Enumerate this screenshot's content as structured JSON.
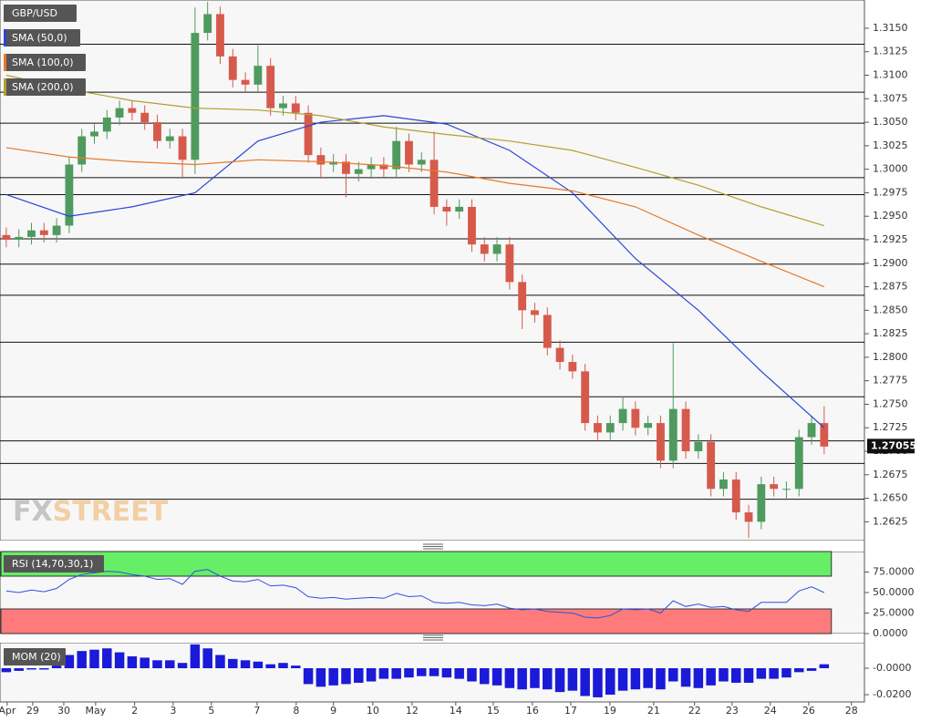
{
  "watermark": [
    "FX",
    "STREET"
  ],
  "chart_data": [
    {
      "type": "candlestick",
      "symbol": "GBP/USD",
      "last_price": 1.27055,
      "last_price_label": "1.27055",
      "up_color": "#4f9a5e",
      "down_color": "#d65a4c",
      "ylim": [
        1.2605,
        1.318
      ],
      "yticks": [
        {
          "value": 1.2625,
          "label": "1.2625"
        },
        {
          "value": 1.265,
          "label": "1.2650"
        },
        {
          "value": 1.2675,
          "label": "1.2675"
        },
        {
          "value": 1.27,
          "label": "1.2700"
        },
        {
          "value": 1.2725,
          "label": "1.2725"
        },
        {
          "value": 1.275,
          "label": "1.2750"
        },
        {
          "value": 1.2775,
          "label": "1.2775"
        },
        {
          "value": 1.28,
          "label": "1.2800"
        },
        {
          "value": 1.2825,
          "label": "1.2825"
        },
        {
          "value": 1.285,
          "label": "1.2850"
        },
        {
          "value": 1.2875,
          "label": "1.2875"
        },
        {
          "value": 1.29,
          "label": "1.2900"
        },
        {
          "value": 1.2925,
          "label": "1.2925"
        },
        {
          "value": 1.295,
          "label": "1.2950"
        },
        {
          "value": 1.2975,
          "label": "1.2975"
        },
        {
          "value": 1.3,
          "label": "1.3000"
        },
        {
          "value": 1.3025,
          "label": "1.3025"
        },
        {
          "value": 1.305,
          "label": "1.3050"
        },
        {
          "value": 1.3075,
          "label": "1.3075"
        },
        {
          "value": 1.31,
          "label": "1.3100"
        },
        {
          "value": 1.3125,
          "label": "1.3125"
        },
        {
          "value": 1.315,
          "label": "1.3150"
        }
      ],
      "levels": [
        1.3133,
        1.3082,
        1.3049,
        1.2991,
        1.2973,
        1.2926,
        1.2899,
        1.2866,
        1.2816,
        1.2758,
        1.2711,
        1.2687,
        1.2649
      ],
      "open": [
        1.293,
        1.2925,
        1.2928,
        1.2935,
        1.293,
        1.294,
        1.3005,
        1.3035,
        1.304,
        1.3055,
        1.3065,
        1.306,
        1.305,
        1.303,
        1.3035,
        1.301,
        1.3145,
        1.3165,
        1.312,
        1.3095,
        1.309,
        1.311,
        1.3065,
        1.307,
        1.306,
        1.3015,
        1.3005,
        1.3008,
        1.2995,
        1.3,
        1.3005,
        1.3,
        1.303,
        1.3005,
        1.301,
        1.296,
        1.2955,
        1.296,
        1.292,
        1.291,
        1.292,
        1.288,
        1.285,
        1.2845,
        1.281,
        1.2795,
        1.2785,
        1.273,
        1.272,
        1.273,
        1.2745,
        1.2725,
        1.273,
        1.269,
        1.2745,
        1.27,
        1.271,
        1.266,
        1.267,
        1.2635,
        1.2625,
        1.2665,
        1.266,
        1.266,
        1.2715,
        1.273
      ],
      "high": [
        1.2938,
        1.2936,
        1.2943,
        1.2943,
        1.2948,
        1.3013,
        1.3043,
        1.3048,
        1.3063,
        1.3073,
        1.3073,
        1.3068,
        1.3058,
        1.3043,
        1.3043,
        1.3172,
        1.3178,
        1.3173,
        1.3128,
        1.3103,
        1.3132,
        1.3118,
        1.3078,
        1.3078,
        1.3068,
        1.3023,
        1.3016,
        1.3016,
        1.3008,
        1.3013,
        1.3013,
        1.3045,
        1.3038,
        1.3018,
        1.304,
        1.2968,
        1.2968,
        1.2968,
        1.2928,
        1.2928,
        1.2928,
        1.2888,
        1.2858,
        1.2853,
        1.2818,
        1.2803,
        1.2793,
        1.2738,
        1.2738,
        1.2758,
        1.2753,
        1.2738,
        1.2738,
        1.2815,
        1.2753,
        1.2718,
        1.2718,
        1.2678,
        1.2678,
        1.2643,
        1.2673,
        1.2673,
        1.2668,
        1.2723,
        1.2738,
        1.2748
      ],
      "low": [
        1.2917,
        1.2917,
        1.292,
        1.2922,
        1.2922,
        1.2932,
        1.2997,
        1.3027,
        1.3032,
        1.3047,
        1.3052,
        1.3042,
        1.3022,
        1.3022,
        1.299,
        1.2995,
        1.3137,
        1.3112,
        1.3087,
        1.3082,
        1.3082,
        1.3057,
        1.3057,
        1.3052,
        1.3007,
        1.299,
        1.2997,
        1.297,
        1.2987,
        1.2992,
        1.2992,
        1.2992,
        1.2997,
        1.2997,
        1.2952,
        1.294,
        1.2947,
        1.2912,
        1.2902,
        1.2902,
        1.2872,
        1.283,
        1.2837,
        1.2802,
        1.2787,
        1.2777,
        1.2722,
        1.2712,
        1.2712,
        1.2722,
        1.2717,
        1.2717,
        1.2682,
        1.2682,
        1.2692,
        1.2692,
        1.2652,
        1.2652,
        1.2627,
        1.2608,
        1.2617,
        1.2652,
        1.2648,
        1.2652,
        1.2707,
        1.2697
      ],
      "close": [
        1.2925,
        1.2928,
        1.2935,
        1.293,
        1.294,
        1.3005,
        1.3035,
        1.304,
        1.3055,
        1.3065,
        1.306,
        1.305,
        1.303,
        1.3035,
        1.301,
        1.3145,
        1.3165,
        1.312,
        1.3095,
        1.309,
        1.311,
        1.3065,
        1.307,
        1.306,
        1.3015,
        1.3005,
        1.3008,
        1.2995,
        1.3,
        1.3005,
        1.3,
        1.303,
        1.3005,
        1.301,
        1.296,
        1.2955,
        1.296,
        1.292,
        1.291,
        1.292,
        1.288,
        1.285,
        1.2845,
        1.281,
        1.2795,
        1.2785,
        1.273,
        1.272,
        1.273,
        1.2745,
        1.2725,
        1.273,
        1.269,
        1.2745,
        1.27,
        1.271,
        1.266,
        1.267,
        1.2635,
        1.2625,
        1.2665,
        1.266,
        1.266,
        1.2715,
        1.273,
        1.2705
      ],
      "series": [
        {
          "name": "SMA (50,0)",
          "color": "#2a45d8",
          "x": [
            0,
            5,
            10,
            15,
            20,
            25,
            30,
            35,
            40,
            45,
            50,
            55,
            60,
            65
          ],
          "values": [
            1.2973,
            1.295,
            1.296,
            1.2975,
            1.303,
            1.305,
            1.3057,
            1.3048,
            1.302,
            1.2975,
            1.2905,
            1.285,
            1.2785,
            1.2725
          ]
        },
        {
          "name": "SMA (100,0)",
          "color": "#e8782a",
          "x": [
            0,
            5,
            10,
            15,
            20,
            25,
            30,
            35,
            40,
            45,
            50,
            55,
            60,
            65
          ],
          "values": [
            1.3023,
            1.3013,
            1.3008,
            1.3005,
            1.301,
            1.3008,
            1.3004,
            1.2997,
            1.2985,
            1.2977,
            1.296,
            1.293,
            1.2902,
            1.2875
          ]
        },
        {
          "name": "SMA (200,0)",
          "color": "#b0a030",
          "x": [
            0,
            5,
            10,
            15,
            20,
            25,
            30,
            35,
            40,
            45,
            50,
            55,
            60,
            65
          ],
          "values": [
            1.31,
            1.3085,
            1.3073,
            1.3065,
            1.3063,
            1.3057,
            1.3045,
            1.3037,
            1.303,
            1.302,
            1.3002,
            1.2983,
            1.296,
            1.294
          ]
        }
      ]
    },
    {
      "type": "line",
      "title": "RSI (14,70,30,1)",
      "color": "#3050e0",
      "overbought": 70,
      "oversold": 30,
      "ylim": [
        0,
        100
      ],
      "yticks": [
        {
          "value": 0,
          "label": "0.0000"
        },
        {
          "value": 25,
          "label": "25.0000"
        },
        {
          "value": 50,
          "label": "50.0000"
        },
        {
          "value": 75,
          "label": "75.0000"
        }
      ],
      "values": [
        52,
        50,
        53,
        51,
        55,
        66,
        72,
        74,
        76,
        75,
        72,
        70,
        66,
        67,
        60,
        76,
        78,
        70,
        64,
        63,
        66,
        58,
        59,
        56,
        45,
        43,
        44,
        42,
        43,
        44,
        43,
        49,
        45,
        46,
        38,
        37,
        38,
        35,
        34,
        36,
        31,
        29,
        30,
        27,
        26,
        25,
        20,
        19,
        22,
        30,
        29,
        30,
        25,
        40,
        33,
        36,
        32,
        33,
        29,
        27,
        38,
        38,
        38,
        52,
        57,
        50
      ]
    },
    {
      "type": "bar",
      "title": "MOM (20)",
      "color": "#1a1ad8",
      "ylim": [
        -0.0255,
        0.0193
      ],
      "yticks": [
        {
          "value": -0.02,
          "label": "-0.0200"
        },
        {
          "value": 0,
          "label": "-0.0000"
        }
      ],
      "values": [
        -0.003,
        -0.002,
        -0.001,
        -0.001,
        0.002,
        0.01,
        0.013,
        0.014,
        0.015,
        0.012,
        0.009,
        0.008,
        0.006,
        0.006,
        0.004,
        0.018,
        0.015,
        0.01,
        0.007,
        0.006,
        0.005,
        0.003,
        0.004,
        0.002,
        -0.012,
        -0.014,
        -0.013,
        -0.012,
        -0.011,
        -0.01,
        -0.008,
        -0.008,
        -0.007,
        -0.006,
        -0.006,
        -0.007,
        -0.008,
        -0.01,
        -0.012,
        -0.013,
        -0.015,
        -0.016,
        -0.015,
        -0.016,
        -0.018,
        -0.017,
        -0.021,
        -0.022,
        -0.02,
        -0.017,
        -0.016,
        -0.015,
        -0.016,
        -0.01,
        -0.014,
        -0.015,
        -0.013,
        -0.01,
        -0.011,
        -0.011,
        -0.008,
        -0.008,
        -0.007,
        -0.003,
        -0.002,
        0.003
      ],
      "xlim": [
        -0.5,
        68.2
      ],
      "xticks": [
        {
          "value": 0.07,
          "label": "Apr"
        },
        {
          "value": 2.1,
          "label": "29"
        },
        {
          "value": 4.57,
          "label": "30"
        },
        {
          "value": 7.1,
          "label": "May"
        },
        {
          "value": 10.2,
          "label": "2"
        },
        {
          "value": 13.26,
          "label": "3"
        },
        {
          "value": 16.3,
          "label": "5"
        },
        {
          "value": 19.93,
          "label": "7"
        },
        {
          "value": 23.04,
          "label": "8"
        },
        {
          "value": 26.0,
          "label": "9"
        },
        {
          "value": 29.13,
          "label": "10"
        },
        {
          "value": 32.25,
          "label": "12"
        },
        {
          "value": 35.72,
          "label": "14"
        },
        {
          "value": 38.7,
          "label": "15"
        },
        {
          "value": 41.81,
          "label": "16"
        },
        {
          "value": 44.86,
          "label": "17"
        },
        {
          "value": 47.97,
          "label": "19"
        },
        {
          "value": 51.45,
          "label": "21"
        },
        {
          "value": 54.7,
          "label": "22"
        },
        {
          "value": 57.68,
          "label": "23"
        },
        {
          "value": 60.72,
          "label": "24"
        },
        {
          "value": 63.77,
          "label": "26"
        },
        {
          "value": 67.17,
          "label": "28"
        }
      ]
    }
  ]
}
